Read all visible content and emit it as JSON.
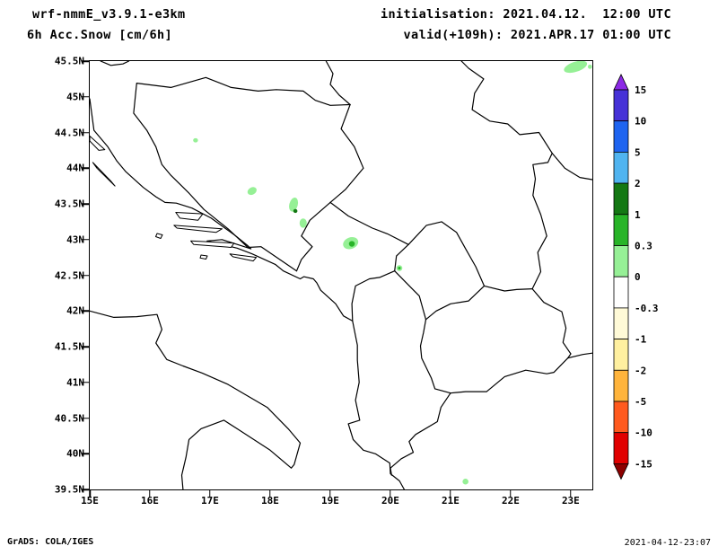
{
  "header": {
    "model": "wrf-nmmE_v3.9.1-e3km",
    "variable": "6h Acc.Snow [cm/6h]",
    "init_label": "initialisation: 2021.04.12.  12:00 UTC",
    "valid_label": "valid(+109h): 2021.APR.17 01:00 UTC"
  },
  "footer": {
    "left": "GrADS: COLA/IGES",
    "right": "2021-04-12-23:07"
  },
  "chart_data": {
    "type": "heatmap",
    "title": "6h Acc.Snow [cm/6h]",
    "subtitle": "wrf-nmmE_v3.9.1-e3km",
    "init_time": "2021.04.12. 12:00 UTC",
    "valid_time": "2021.APR.17 01:00 UTC (+109h)",
    "units": "cm/6h",
    "region": "Adriatic / Western Balkans",
    "extent": {
      "lon": [
        15.0,
        23.36
      ],
      "lat": [
        39.5,
        45.5
      ]
    },
    "xticks": {
      "values": [
        15,
        16,
        17,
        18,
        19,
        20,
        21,
        22,
        23
      ],
      "labels": [
        "15E",
        "16E",
        "17E",
        "18E",
        "19E",
        "20E",
        "21E",
        "22E",
        "23E"
      ]
    },
    "yticks": {
      "values": [
        45.5,
        45,
        44.5,
        44,
        43.5,
        43,
        42.5,
        42,
        41.5,
        41,
        40.5,
        40,
        39.5
      ],
      "labels": [
        "45.5N",
        "45N",
        "44.5N",
        "44N",
        "43.5N",
        "43N",
        "42.5N",
        "42N",
        "41.5N",
        "41N",
        "40.5N",
        "40N",
        "39.5N"
      ]
    },
    "colorbar": {
      "levels": [
        -15,
        -10,
        -5,
        -2,
        -1,
        -0.3,
        0,
        0.3,
        1,
        2,
        5,
        10,
        15
      ],
      "labels": [
        "15",
        "10",
        "5",
        "2",
        "1",
        "0.3",
        "0",
        "-0.3",
        "-1",
        "-2",
        "-5",
        "-10",
        "-15"
      ],
      "band_colors_top_to_bottom": [
        "#4632d7",
        "#1e64f0",
        "#50b4f0",
        "#147814",
        "#28b428",
        "#96f096",
        "#ffffff",
        "#fffad7",
        "#fff0a0",
        "#ffb43c",
        "#ff5a1e",
        "#e10000"
      ],
      "over_color": "#8c28e6",
      "under_color": "#8c0000"
    },
    "patch_colors": {
      "light": "#96f096",
      "medium": "#28b428",
      "dark": "#147814"
    },
    "snow_patches": [
      {
        "lon": 23.08,
        "lat": 45.42,
        "rx": 0.2,
        "ry": 0.07,
        "color": "light",
        "rot": -18
      },
      {
        "lon": 23.32,
        "lat": 45.42,
        "rx": 0.035,
        "ry": 0.03,
        "color": "light",
        "rot": 0
      },
      {
        "lon": 16.76,
        "lat": 44.39,
        "rx": 0.04,
        "ry": 0.03,
        "color": "light",
        "rot": 0
      },
      {
        "lon": 17.7,
        "lat": 43.68,
        "rx": 0.08,
        "ry": 0.05,
        "color": "light",
        "rot": -30
      },
      {
        "lon": 18.39,
        "lat": 43.49,
        "rx": 0.07,
        "ry": 0.1,
        "color": "light",
        "rot": 15
      },
      {
        "lon": 18.42,
        "lat": 43.4,
        "rx": 0.035,
        "ry": 0.028,
        "color": "dark",
        "rot": 0
      },
      {
        "lon": 18.55,
        "lat": 43.23,
        "rx": 0.06,
        "ry": 0.065,
        "color": "light",
        "rot": 0
      },
      {
        "lon": 19.34,
        "lat": 42.95,
        "rx": 0.13,
        "ry": 0.08,
        "color": "light",
        "rot": -20
      },
      {
        "lon": 19.36,
        "lat": 42.94,
        "rx": 0.05,
        "ry": 0.04,
        "color": "medium",
        "rot": 0
      },
      {
        "lon": 20.15,
        "lat": 42.6,
        "rx": 0.05,
        "ry": 0.042,
        "color": "light",
        "rot": 0
      },
      {
        "lon": 20.15,
        "lat": 42.6,
        "rx": 0.022,
        "ry": 0.02,
        "color": "medium",
        "rot": 0
      },
      {
        "lon": 21.25,
        "lat": 39.61,
        "rx": 0.05,
        "ry": 0.04,
        "color": "light",
        "rot": 0
      }
    ],
    "legend_position": "right",
    "grid": false
  }
}
